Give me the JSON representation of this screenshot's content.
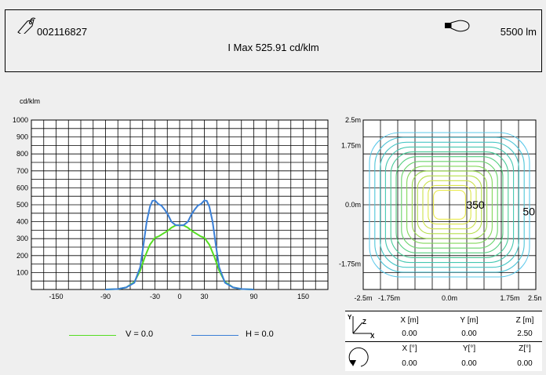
{
  "header": {
    "article_number": "002116827",
    "imax": "I Max 525.91 cd/klm",
    "lumen": "5500 lm"
  },
  "chart_data": [
    {
      "type": "line",
      "unit_label": "cd/klm",
      "xlim": [
        -180,
        180
      ],
      "ylim": [
        0,
        1000
      ],
      "x_tick_labels": [
        "-150",
        "-90",
        "-30",
        "0",
        "30",
        "90",
        "150"
      ],
      "x_tick_values": [
        -150,
        -90,
        -30,
        0,
        30,
        90,
        150
      ],
      "y_tick_labels": [
        "100",
        "200",
        "300",
        "400",
        "500",
        "600",
        "700",
        "800",
        "900",
        "1000"
      ],
      "y_tick_values": [
        100,
        200,
        300,
        400,
        500,
        600,
        700,
        800,
        900,
        1000
      ],
      "grid": true,
      "legend_placement": "bottom",
      "series": [
        {
          "name": "V = 0.0",
          "color": "#55dd22",
          "x": [
            -90,
            -75,
            -65,
            -55,
            -48,
            -42,
            -36,
            -30,
            -25,
            -20,
            -15,
            -10,
            -5,
            0,
            5,
            10,
            15,
            20,
            25,
            30,
            36,
            42,
            48,
            55,
            65,
            75,
            90
          ],
          "y": [
            0,
            3,
            12,
            45,
            110,
            195,
            265,
            305,
            315,
            330,
            345,
            365,
            378,
            380,
            378,
            365,
            345,
            330,
            315,
            305,
            265,
            195,
            110,
            45,
            12,
            3,
            0
          ]
        },
        {
          "name": "H = 0.0",
          "color": "#3a7fd6",
          "x": [
            -90,
            -75,
            -65,
            -55,
            -48,
            -44,
            -40,
            -36,
            -33,
            -30,
            -26,
            -22,
            -18,
            -14,
            -10,
            -5,
            0,
            5,
            10,
            14,
            18,
            22,
            26,
            30,
            33,
            36,
            40,
            44,
            48,
            55,
            65,
            75,
            90
          ],
          "y": [
            0,
            3,
            12,
            40,
            130,
            260,
            400,
            490,
            523,
            526,
            505,
            495,
            470,
            440,
            400,
            380,
            378,
            380,
            400,
            440,
            470,
            495,
            505,
            526,
            523,
            490,
            400,
            260,
            130,
            40,
            12,
            3,
            0
          ]
        }
      ]
    },
    {
      "type": "contour",
      "x_tick_labels": [
        "-2.5m",
        "-1.75m",
        "0.0m",
        "1.75m",
        "2.5m"
      ],
      "x_tick_values": [
        -2.5,
        -1.75,
        0,
        1.75,
        2.5
      ],
      "y_tick_labels": [
        "2.5m",
        "1.75m",
        "0.0m",
        "-1.75m"
      ],
      "y_tick_values": [
        2.5,
        1.75,
        0,
        -1.75
      ],
      "xlim": [
        -2.5,
        2.5
      ],
      "ylim": [
        -2.5,
        2.5
      ],
      "levels": [
        50,
        75,
        100,
        125,
        150,
        175,
        200,
        225,
        250,
        275,
        300,
        325,
        350
      ],
      "annotations": [
        {
          "text": "350",
          "x": 0.75,
          "y": 0.0
        },
        {
          "text": "50",
          "x": 2.3,
          "y": -0.2
        }
      ]
    }
  ],
  "coordinates": {
    "headers": [
      "X [m]",
      "Y [m]",
      "Z [m]"
    ],
    "values": [
      "0.00",
      "0.00",
      "2.50"
    ],
    "angle_headers": [
      "X [°]",
      "Y[°]",
      "Z[°]"
    ],
    "angle_values": [
      "0.00",
      "0.00",
      "0.00"
    ],
    "axis_labels": [
      "Y",
      "Z",
      "X"
    ]
  }
}
